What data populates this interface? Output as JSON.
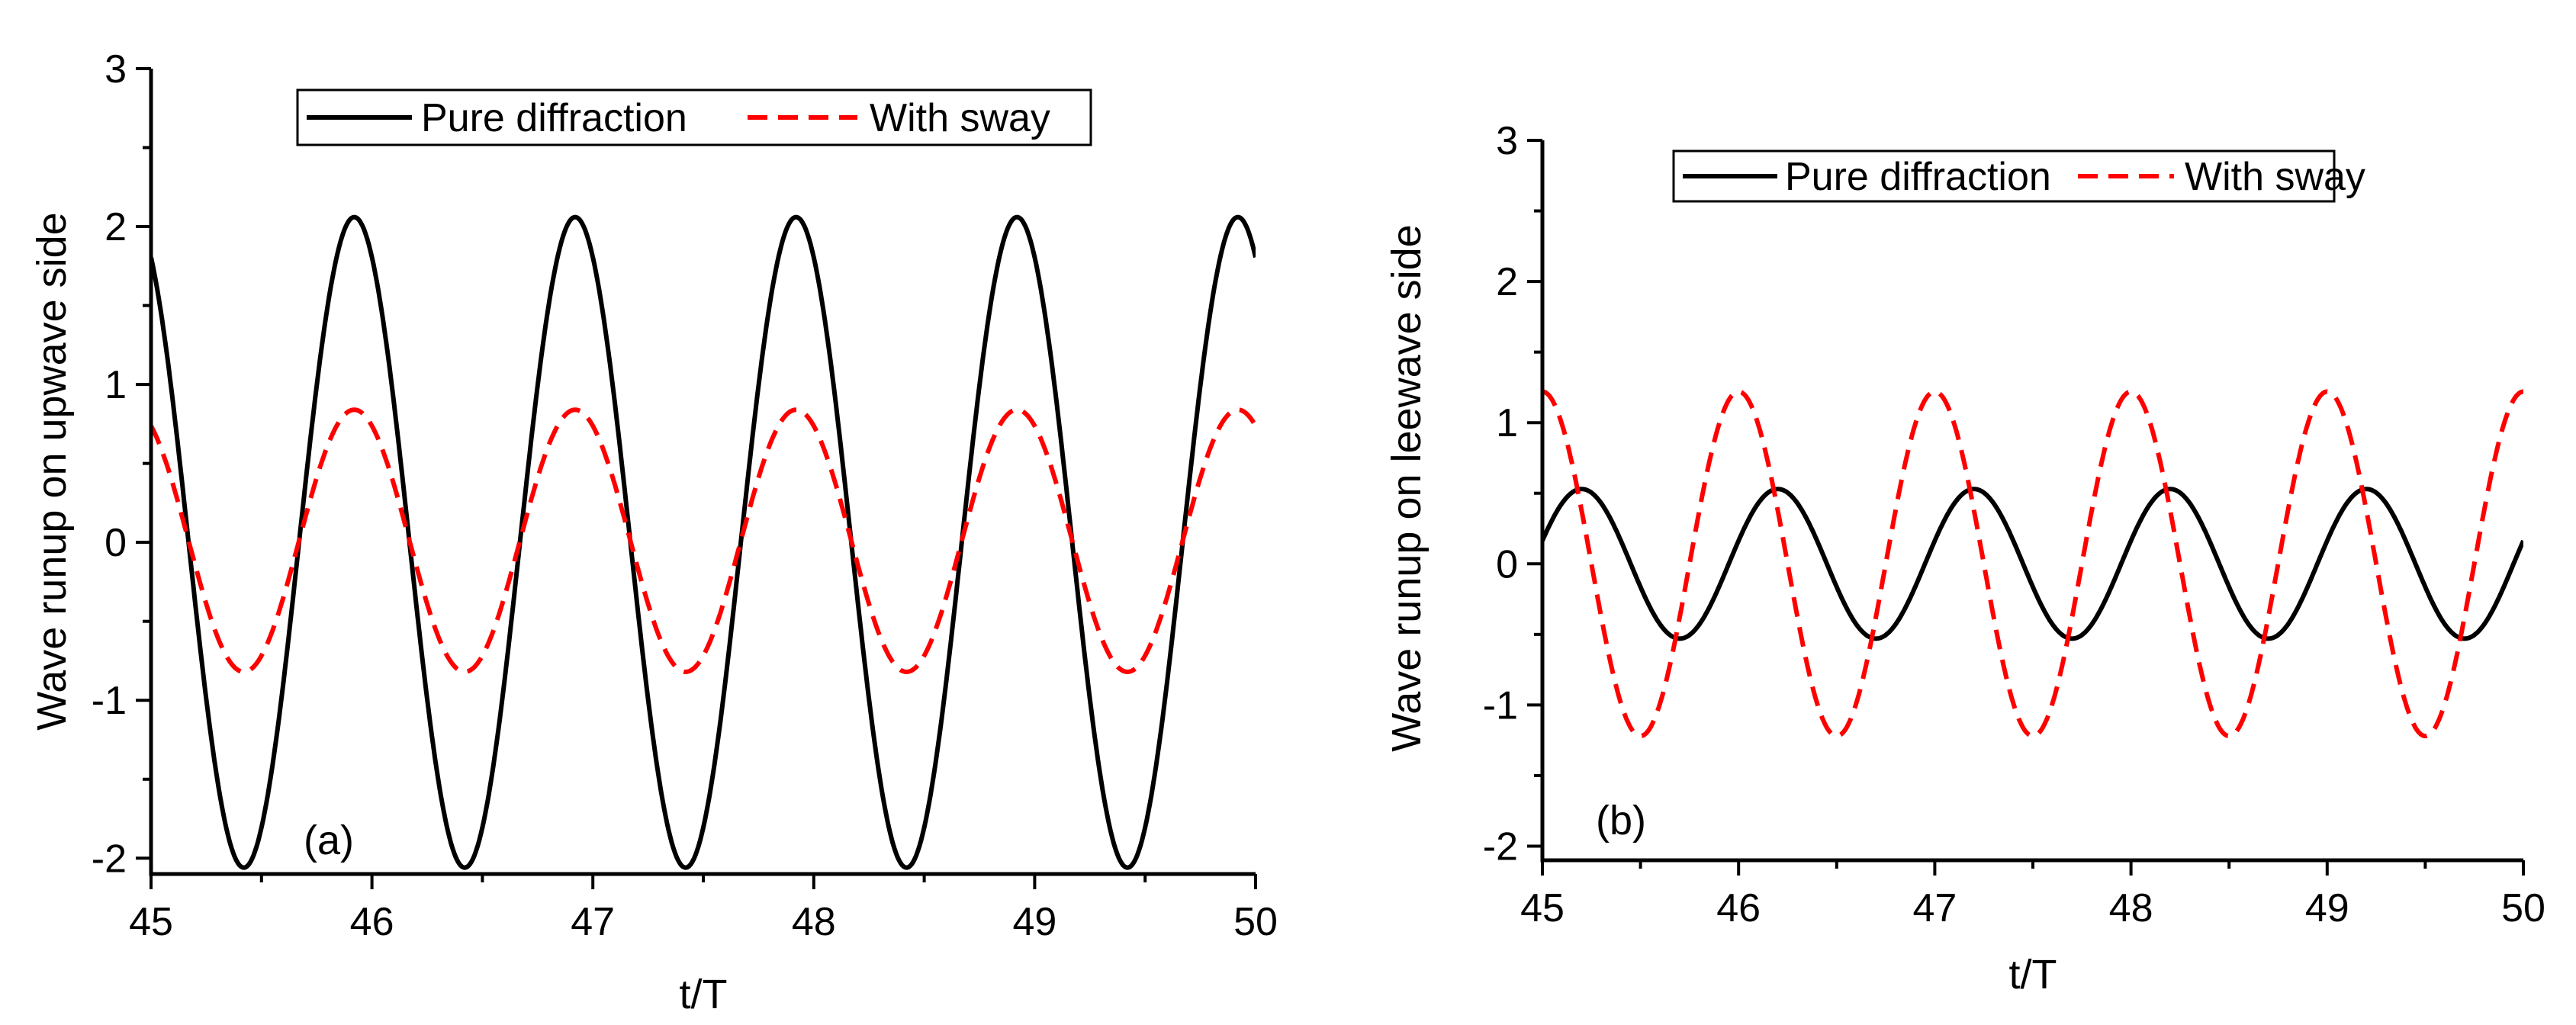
{
  "chart_data": [
    {
      "type": "line",
      "panel_label": "(a)",
      "xlabel": "t/T",
      "ylabel": "Wave runup on upwave side",
      "xlim": [
        45,
        50
      ],
      "ylim": [
        -2.1,
        3
      ],
      "xticks": [
        45,
        46,
        47,
        48,
        49,
        50
      ],
      "yticks": [
        -2,
        -1,
        0,
        1,
        2,
        3
      ],
      "ytick_labels": [
        "-2",
        "-1",
        "0",
        "1",
        "2",
        "3"
      ],
      "legend_position": "top-center",
      "series": [
        {
          "name": "Pure diffraction",
          "style": "solid",
          "color": "#000000",
          "amplitude": 2.06,
          "period": 1.0,
          "peak_at": 45.92,
          "offset": 0.0
        },
        {
          "name": "With sway",
          "style": "dashed",
          "color": "#ff0000",
          "amplitude": 0.83,
          "period": 1.0,
          "peak_at": 45.92,
          "offset": 0.01
        }
      ]
    },
    {
      "type": "line",
      "panel_label": "(b)",
      "xlabel": "t/T",
      "ylabel": "Wave runup on leewave side",
      "xlim": [
        45,
        50
      ],
      "ylim": [
        -2.1,
        3
      ],
      "xticks": [
        45,
        46,
        47,
        48,
        49,
        50
      ],
      "yticks": [
        -2,
        -1,
        0,
        1,
        2,
        3
      ],
      "ytick_labels": [
        "-2",
        "-1",
        "0",
        "1",
        "2",
        "3"
      ],
      "legend_position": "top-center",
      "series": [
        {
          "name": "Pure diffraction",
          "style": "solid",
          "color": "#000000",
          "amplitude": 0.53,
          "period": 1.0,
          "peak_at": 45.2,
          "offset": 0.0
        },
        {
          "name": "With sway",
          "style": "dashed",
          "color": "#ff0000",
          "amplitude": 1.22,
          "period": 1.0,
          "peak_at": 45.0,
          "offset": 0.0
        }
      ]
    }
  ]
}
